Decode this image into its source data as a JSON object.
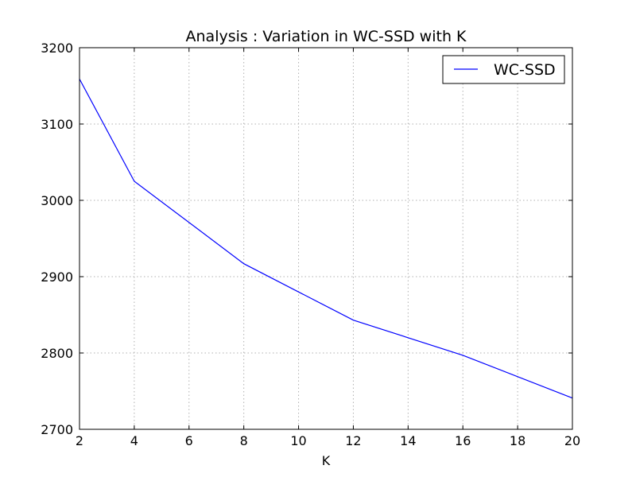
{
  "chart_data": {
    "type": "line",
    "title": "Analysis : Variation in WC-SSD with K",
    "xlabel": "K",
    "ylabel": "",
    "xlim": [
      2,
      20
    ],
    "ylim": [
      2700,
      3200
    ],
    "xticks": [
      2,
      4,
      6,
      8,
      10,
      12,
      14,
      16,
      18,
      20
    ],
    "yticks": [
      2700,
      2800,
      2900,
      3000,
      3100,
      3200
    ],
    "grid": true,
    "legend_position": "top-right",
    "series": [
      {
        "name": "WC-SSD",
        "color": "#0000ff",
        "x": [
          2,
          4,
          8,
          12,
          16,
          20
        ],
        "y": [
          3159,
          3025,
          2917,
          2843,
          2797,
          2741
        ]
      }
    ]
  }
}
